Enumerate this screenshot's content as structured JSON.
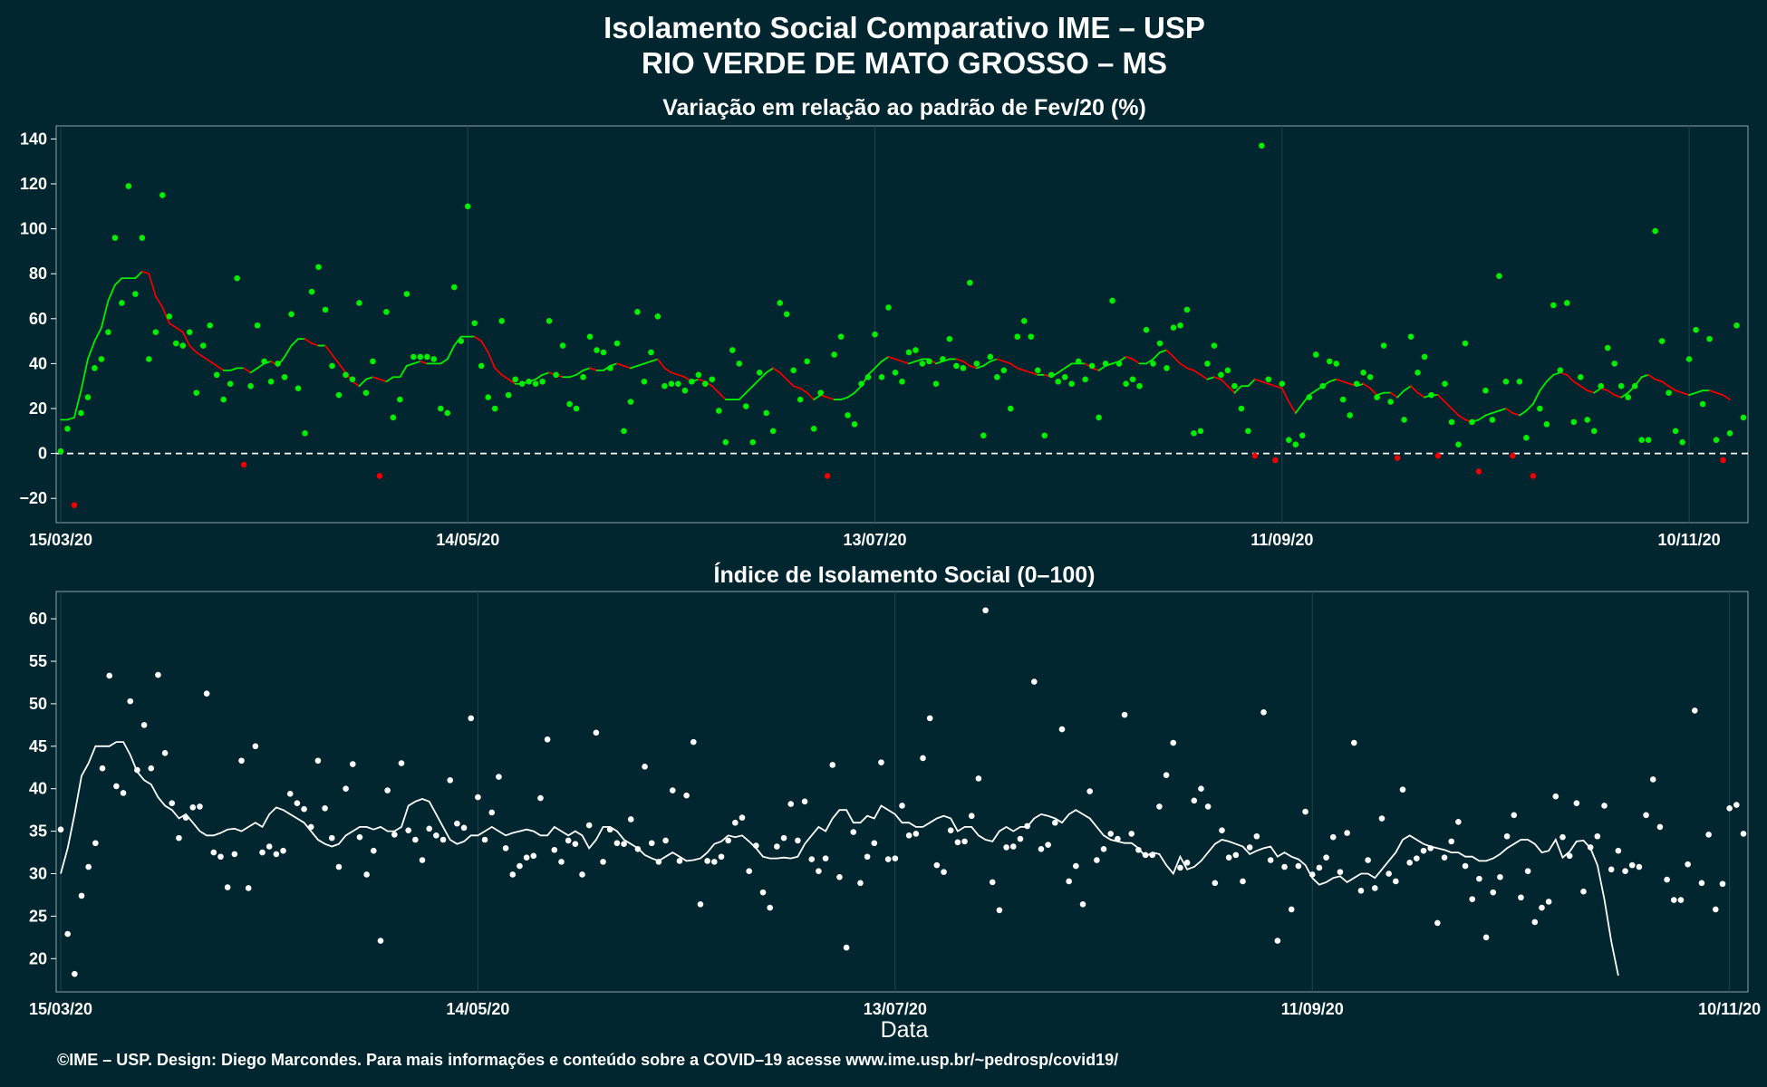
{
  "title": "Isolamento Social Comparativo IME – USP",
  "subtitle": "RIO VERDE DE MATO GROSSO – MS",
  "xlabel": "Data",
  "footer": "©IME – USP. Design: Diego Marcondes. Para mais informações e conteúdo sobre a COVID–19 acesse www.ime.usp.br/~pedrosp/covid19/",
  "colors": {
    "background": "#01262f",
    "positive": "#00ee00",
    "negative": "#ee0000",
    "index": "#ffffff",
    "grid": "#1d4450"
  },
  "chart_data": [
    {
      "type": "scatter",
      "title": "Variação em relação ao padrão de Fev/20 (%)",
      "xlabel": "",
      "ylabel": "",
      "x_start": "15/03/20",
      "x_end": "14/11/20",
      "x_ticks": [
        "15/03/20",
        "14/05/20",
        "13/07/20",
        "11/09/20",
        "10/11/20"
      ],
      "ylim": [
        -30,
        145
      ],
      "y_ticks": [
        -20,
        0,
        20,
        40,
        60,
        80,
        100,
        120,
        140
      ],
      "reference_line": 0,
      "grid": true,
      "series": [
        {
          "kind": "daily",
          "values": [
            1,
            11,
            -23,
            18,
            25,
            38,
            42,
            54,
            96,
            67,
            119,
            71,
            96,
            42,
            54,
            115,
            61,
            49,
            48,
            54,
            27,
            48,
            57,
            35,
            24,
            31,
            78,
            -5,
            30,
            57,
            41,
            32,
            40,
            34,
            62,
            29,
            9,
            72,
            83,
            64,
            39,
            26,
            35,
            33,
            67,
            27,
            41,
            -10,
            63,
            16,
            24,
            71,
            43,
            43,
            43,
            42,
            20,
            18,
            74,
            50,
            110,
            58,
            39,
            25,
            20,
            59,
            26,
            33,
            31,
            32,
            31,
            32,
            59,
            35,
            48,
            22,
            20,
            34,
            52,
            46,
            45,
            38,
            49,
            10,
            23,
            63,
            32,
            45,
            61,
            30,
            31,
            31,
            28,
            32,
            35,
            31,
            33,
            19,
            5,
            46,
            40,
            21,
            5,
            36,
            18,
            10,
            67,
            62,
            37,
            24,
            41,
            11,
            27,
            -10,
            44,
            52,
            17,
            13,
            31,
            34,
            53,
            34,
            65,
            36,
            32,
            45,
            46,
            40,
            41,
            31,
            42,
            51,
            39,
            38,
            76,
            40,
            8,
            43,
            34,
            37,
            20,
            52,
            59,
            52,
            37,
            8,
            35,
            32,
            34,
            31,
            41,
            33,
            39,
            16,
            40,
            68,
            40,
            31,
            33,
            30,
            55,
            40,
            49,
            38,
            56,
            57,
            64,
            9,
            10,
            40,
            48,
            35,
            37,
            30,
            20,
            10,
            -1,
            137,
            33,
            -3,
            31,
            6,
            4,
            8,
            25,
            44,
            30,
            41,
            40,
            24,
            17,
            31,
            36,
            34,
            25,
            48,
            23,
            -2,
            15,
            52,
            36,
            43,
            26,
            -1,
            31,
            14,
            4,
            49,
            14,
            -8,
            28,
            15,
            79,
            32,
            -1,
            32,
            7,
            -10,
            20,
            13,
            66,
            37,
            67,
            14,
            34,
            15,
            10,
            30,
            47,
            40,
            30,
            25,
            30,
            6,
            6,
            99,
            50,
            27,
            10,
            5,
            42,
            55,
            22,
            51,
            6,
            -3,
            9,
            57,
            16
          ]
        },
        {
          "kind": "moving_average",
          "values": [
            15,
            15,
            16,
            28,
            42,
            50,
            56,
            68,
            75,
            78,
            78,
            78,
            81,
            80,
            70,
            65,
            58,
            56,
            54,
            48,
            45,
            43,
            41,
            39,
            37,
            37,
            38,
            38,
            36,
            38,
            40,
            41,
            39,
            43,
            48,
            51,
            51,
            49,
            48,
            48,
            44,
            40,
            36,
            32,
            30,
            33,
            34,
            33,
            32,
            34,
            34,
            39,
            40,
            41,
            40,
            40,
            40,
            42,
            48,
            52,
            52,
            52,
            50,
            45,
            38,
            35,
            33,
            31,
            31,
            32,
            33,
            35,
            36,
            35,
            34,
            34,
            35,
            37,
            38,
            37,
            37,
            39,
            40,
            39,
            38,
            39,
            40,
            41,
            42,
            38,
            36,
            35,
            34,
            32,
            33,
            32,
            30,
            27,
            24,
            24,
            24,
            27,
            30,
            33,
            36,
            38,
            36,
            33,
            30,
            29,
            27,
            24,
            26,
            25,
            24,
            24,
            25,
            27,
            30,
            35,
            38,
            41,
            43,
            42,
            41,
            40,
            41,
            42,
            42,
            40,
            41,
            42,
            42,
            41,
            39,
            38,
            39,
            41,
            42,
            41,
            40,
            38,
            37,
            36,
            35,
            35,
            34,
            36,
            38,
            40,
            40,
            40,
            38,
            37,
            39,
            40,
            41,
            43,
            42,
            40,
            40,
            42,
            45,
            46,
            43,
            40,
            38,
            37,
            35,
            33,
            34,
            33,
            30,
            27,
            30,
            30,
            33,
            32,
            31,
            30,
            29,
            23,
            18,
            22,
            26,
            28,
            30,
            32,
            33,
            32,
            31,
            30,
            31,
            29,
            26,
            27,
            27,
            25,
            28,
            30,
            27,
            25,
            26,
            26,
            23,
            20,
            17,
            15,
            14,
            15,
            17,
            18,
            19,
            20,
            18,
            17,
            19,
            22,
            28,
            32,
            35,
            36,
            35,
            32,
            30,
            28,
            27,
            29,
            28,
            26,
            25,
            27,
            30,
            34,
            35,
            33,
            32,
            30,
            28,
            27,
            26,
            27,
            28,
            28,
            27,
            26,
            24
          ]
        }
      ]
    },
    {
      "type": "scatter",
      "title": "Índice de Isolamento Social (0–100)",
      "xlabel": "Data",
      "ylabel": "",
      "x_start": "15/03/20",
      "x_end": "14/11/20",
      "x_ticks": [
        "15/03/20",
        "14/05/20",
        "13/07/20",
        "11/09/20",
        "10/11/20"
      ],
      "ylim": [
        16.3,
        63
      ],
      "y_ticks": [
        20,
        25,
        30,
        35,
        40,
        45,
        50,
        55,
        60
      ],
      "grid": true,
      "series": [
        {
          "kind": "daily",
          "values": [
            35.2,
            22.9,
            18.2,
            27.4,
            30.8,
            33.6,
            42.4,
            53.3,
            40.3,
            39.5,
            50.3,
            42.2,
            47.5,
            42.4,
            53.4,
            44.2,
            38.3,
            34.2,
            36.6,
            37.8,
            37.9,
            51.2,
            32.5,
            32.0,
            28.4,
            32.3,
            43.3,
            28.3,
            45.0,
            32.5,
            33.2,
            32.3,
            32.7,
            39.4,
            38.3,
            37.6,
            35.5,
            43.3,
            37.7,
            34.2,
            30.8,
            40.0,
            42.9,
            34.3,
            29.9,
            32.7,
            22.1,
            39.8,
            34.6,
            43.0,
            35.1,
            34.0,
            31.6,
            35.3,
            34.5,
            34.0,
            41.0,
            35.9,
            35.4,
            48.3,
            39.0,
            34.0,
            37.2,
            41.4,
            33.0,
            29.9,
            30.9,
            31.9,
            32.1,
            38.9,
            45.8,
            32.8,
            31.4,
            33.9,
            33.5,
            29.9,
            35.7,
            46.6,
            31.4,
            35.2,
            33.6,
            33.5,
            36.4,
            32.9,
            42.6,
            33.6,
            31.4,
            33.9,
            39.8,
            31.5,
            39.2,
            45.5,
            26.4,
            31.5,
            31.4,
            32.0,
            33.9,
            36.0,
            36.6,
            30.3,
            33.3,
            27.8,
            26.0,
            33.2,
            34.2,
            38.2,
            33.9,
            38.5,
            31.7,
            30.3,
            31.8,
            42.8,
            29.6,
            21.3,
            34.9,
            28.9,
            32.0,
            33.6,
            43.1,
            31.7,
            31.8,
            38.0,
            34.5,
            34.7,
            43.6,
            48.3,
            31.0,
            30.2,
            35.1,
            33.7,
            33.8,
            36.8,
            41.2,
            61.0,
            29.0,
            25.7,
            33.1,
            33.2,
            34.1,
            35.6,
            52.6,
            32.9,
            33.4,
            36.0,
            47.0,
            29.1,
            30.9,
            26.4,
            39.7,
            31.6,
            32.9,
            34.7,
            34.1,
            48.7,
            34.7,
            32.8,
            32.2,
            32.2,
            37.9,
            41.6,
            45.4,
            30.7,
            31.3,
            38.6,
            40.0,
            37.9,
            28.9,
            35.1,
            31.9,
            32.2,
            29.1,
            33.1,
            34.4,
            49.0,
            31.6,
            22.1,
            30.8,
            25.8,
            30.9,
            37.3,
            29.9,
            30.7,
            31.9,
            34.3,
            30.2,
            34.8,
            45.4,
            28.0,
            31.6,
            28.3,
            36.5,
            30.0,
            29.1,
            39.9,
            31.3,
            31.8,
            32.7,
            33.0,
            24.2,
            31.9,
            33.8,
            36.1,
            30.9,
            27.0,
            29.4,
            22.5,
            27.8,
            29.6,
            34.4,
            36.9,
            27.2,
            30.3,
            24.3,
            26.0,
            26.7,
            39.1,
            34.3,
            32.1,
            38.3,
            27.9,
            33.1,
            34.4,
            38.0,
            30.5,
            32.7,
            30.3,
            31.0,
            30.8,
            36.9,
            41.1,
            35.5,
            29.3,
            26.9,
            26.9,
            31.1,
            49.2,
            28.9,
            34.6,
            25.8,
            28.8,
            37.7,
            38.1,
            34.7
          ]
        },
        {
          "kind": "moving_average",
          "values": [
            30.0,
            33.0,
            37.0,
            41.5,
            43.0,
            45.0,
            45.0,
            45.0,
            45.5,
            45.5,
            44.0,
            42.0,
            41.0,
            40.5,
            39.0,
            38.0,
            37.5,
            36.5,
            37.0,
            36.0,
            35.0,
            34.5,
            34.5,
            34.8,
            35.2,
            35.3,
            35.0,
            35.5,
            36.0,
            35.5,
            37.0,
            37.8,
            37.5,
            37.0,
            36.5,
            36.0,
            35.0,
            34.0,
            33.5,
            33.2,
            33.5,
            34.5,
            35.0,
            35.5,
            35.5,
            35.2,
            35.5,
            35.0,
            35.0,
            35.5,
            38.0,
            38.5,
            38.8,
            38.5,
            37.0,
            35.5,
            34.0,
            33.5,
            33.8,
            34.5,
            34.5,
            35.0,
            35.5,
            35.0,
            34.5,
            34.8,
            35.0,
            35.2,
            35.0,
            34.5,
            34.5,
            35.5,
            35.0,
            34.5,
            35.0,
            34.5,
            33.0,
            34.0,
            35.5,
            35.5,
            35.0,
            34.0,
            33.5,
            33.0,
            32.2,
            31.8,
            31.5,
            32.0,
            32.5,
            32.0,
            31.5,
            31.6,
            31.8,
            32.5,
            33.5,
            33.8,
            34.5,
            34.3,
            34.5,
            33.8,
            33.0,
            32.0,
            31.8,
            31.8,
            31.9,
            31.8,
            32.0,
            33.5,
            34.5,
            35.5,
            35.0,
            36.5,
            37.5,
            37.5,
            36.0,
            36.0,
            36.8,
            36.5,
            38.0,
            37.5,
            37.0,
            36.0,
            36.0,
            35.5,
            35.5,
            36.0,
            36.5,
            36.8,
            36.5,
            35.0,
            35.5,
            35.5,
            34.5,
            34.0,
            33.8,
            35.0,
            35.5,
            35.0,
            35.5,
            35.5,
            36.5,
            37.0,
            36.8,
            36.5,
            36.0,
            37.0,
            37.5,
            37.0,
            36.5,
            35.5,
            34.5,
            34.0,
            33.8,
            33.6,
            33.6,
            33.0,
            32.0,
            32.5,
            32.3,
            31.0,
            30.0,
            32.0,
            30.5,
            30.8,
            31.5,
            32.5,
            33.5,
            34.0,
            33.8,
            33.5,
            33.2,
            32.3,
            32.7,
            33.0,
            33.2,
            32.0,
            32.5,
            32.0,
            31.7,
            31.0,
            29.5,
            28.7,
            29.0,
            29.5,
            29.7,
            29.0,
            29.5,
            30.0,
            30.0,
            29.5,
            30.5,
            31.5,
            32.5,
            34.0,
            34.5,
            34.0,
            33.5,
            33.2,
            33.0,
            32.8,
            32.5,
            32.5,
            32.0,
            32.0,
            31.5,
            31.5,
            31.8,
            32.3,
            33.0,
            33.5,
            34.0,
            34.0,
            33.5,
            32.5,
            32.7,
            34.0,
            31.9,
            32.6,
            33.8,
            33.9,
            33.0,
            31.0,
            27.0,
            22.0,
            18.0
          ]
        }
      ]
    }
  ]
}
